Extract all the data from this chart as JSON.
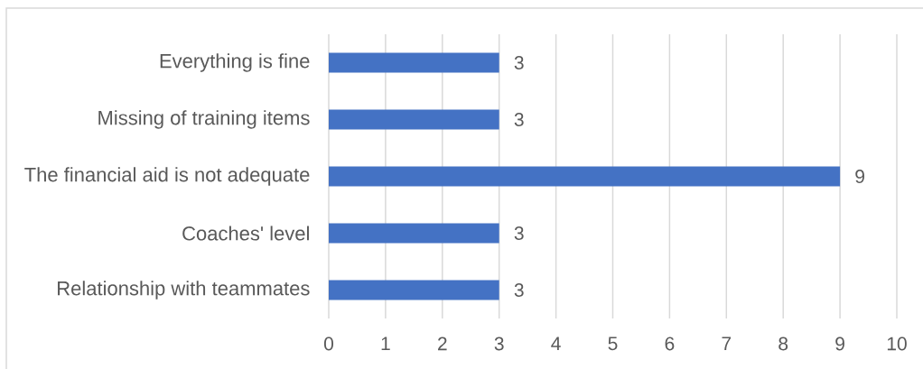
{
  "chart_data": {
    "type": "bar",
    "orientation": "horizontal",
    "categories": [
      "Everything is fine",
      "Missing of training items",
      "The financial aid is not adequate",
      "Coaches' level",
      "Relationship with teammates"
    ],
    "values": [
      3,
      3,
      9,
      3,
      3
    ],
    "color": "#4472c4",
    "xlim": [
      0,
      10
    ],
    "xticks": [
      0,
      1,
      2,
      3,
      4,
      5,
      6,
      7,
      8,
      9,
      10
    ],
    "grid": "x",
    "data_labels": true
  }
}
